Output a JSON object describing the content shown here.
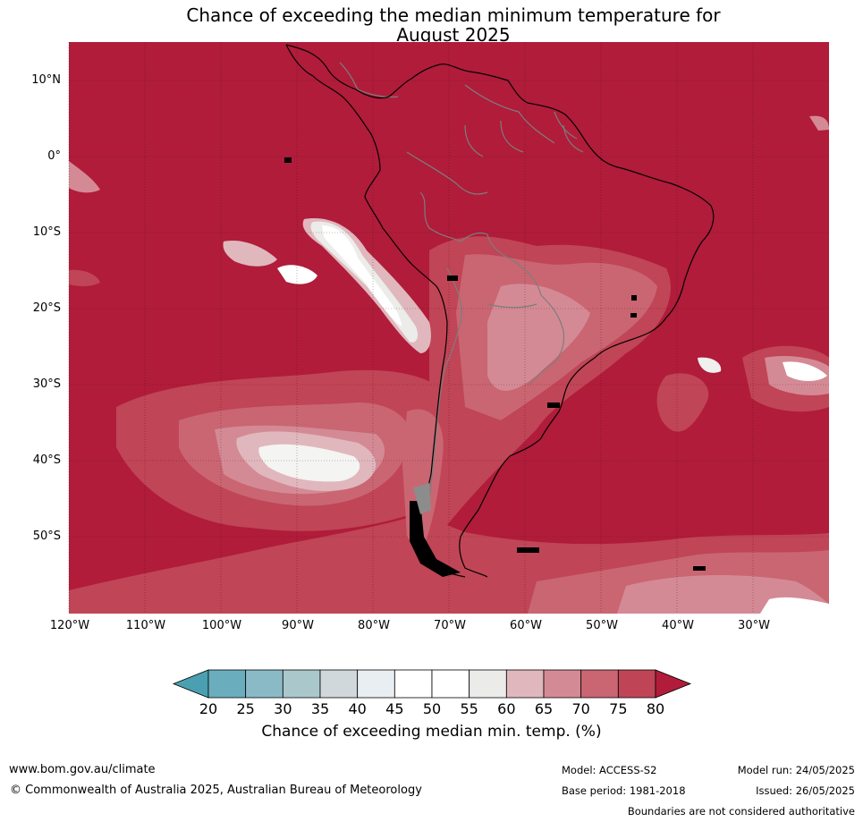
{
  "title": {
    "line1": "Chance of exceeding the median minimum temperature for",
    "line2": "August 2025"
  },
  "map": {
    "lat_labels": [
      "10°N",
      "0°",
      "10°S",
      "20°S",
      "30°S",
      "40°S",
      "50°S"
    ],
    "lon_labels": [
      "120°W",
      "110°W",
      "100°W",
      "90°W",
      "80°W",
      "70°W",
      "60°W",
      "50°W",
      "40°W",
      "30°W"
    ],
    "dominant_category": "80"
  },
  "colorbar": {
    "ticks": [
      "20",
      "25",
      "30",
      "35",
      "40",
      "45",
      "50",
      "55",
      "60",
      "65",
      "70",
      "75",
      "80"
    ],
    "colors": [
      "#4aa0b0",
      "#6aaebe",
      "#8bbac7",
      "#aac7cc",
      "#d0d8db",
      "#e8eef1",
      "#ffffff",
      "#ffffff",
      "#ebebe9",
      "#e0b7bd",
      "#d48a95",
      "#c96672",
      "#bf4556",
      "#b01c3a"
    ],
    "label": "Chance of exceeding median min. temp. (%)"
  },
  "footer": {
    "url": "www.bom.gov.au/climate",
    "copyright": "© Commonwealth of Australia 2025, Australian Bureau of Meteorology",
    "model": "Model: ACCESS-S2",
    "base_period": "Base period: 1981-2018",
    "model_run": "Model run: 24/05/2025",
    "issued": "Issued: 26/05/2025",
    "disclaimer": "Boundaries are not considered authoritative"
  }
}
